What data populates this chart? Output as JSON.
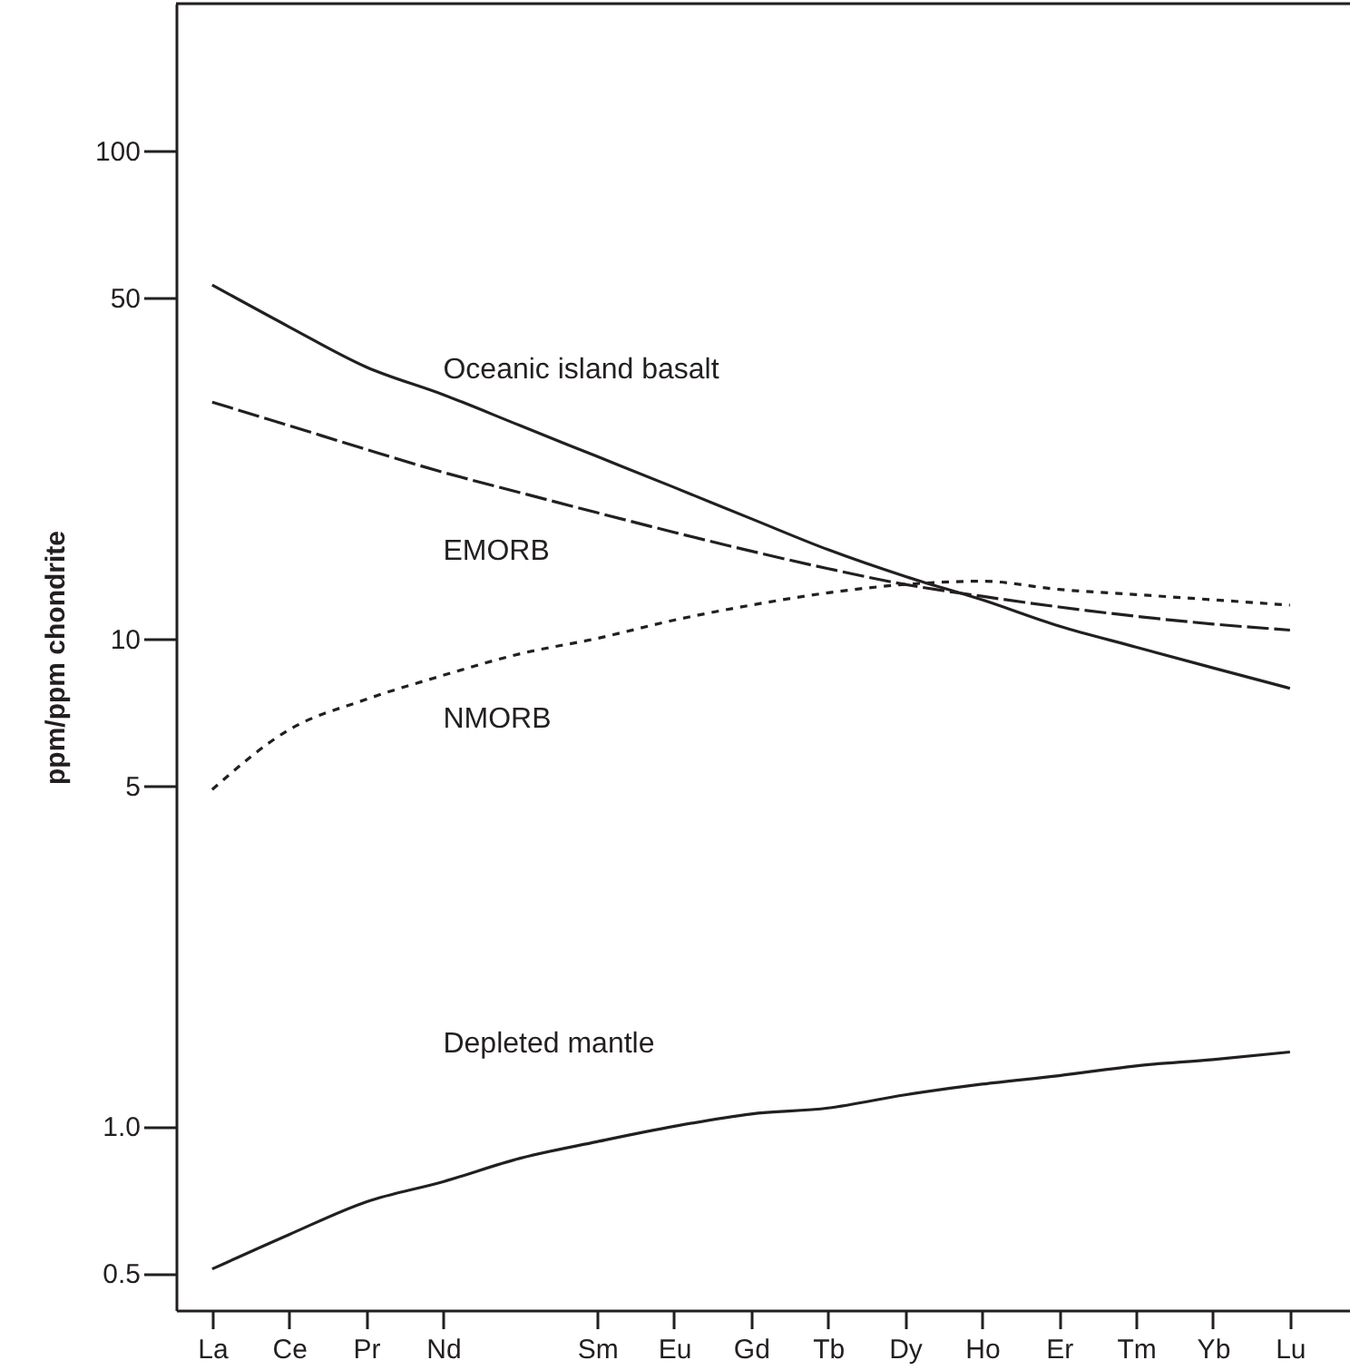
{
  "chart_data": {
    "type": "line",
    "ylabel": "ppm/ppm chondrite",
    "log": true,
    "categories": [
      "La",
      "Ce",
      "Pr",
      "Nd",
      null,
      "Sm",
      "Eu",
      "Gd",
      "Tb",
      "Dy",
      "Ho",
      "Er",
      "Tm",
      "Yb",
      "Lu"
    ],
    "ylim": [
      0.42,
      200
    ],
    "yticks": [
      {
        "value": 0.5,
        "label": "0.5"
      },
      {
        "value": 1,
        "label": "1.0"
      },
      5,
      10,
      50,
      100
    ],
    "grid": false,
    "marker": "none",
    "series": [
      {
        "name": "Oceanic island basalt",
        "color": "#231f20",
        "line_style": "solid",
        "values": [
          53,
          43.5,
          36,
          31.6,
          27.3,
          23.6,
          20.4,
          17.6,
          15.2,
          13.4,
          12,
          10.6,
          9.6,
          8.7,
          7.9
        ]
      },
      {
        "name": "EMORB",
        "color": "#231f20",
        "line_style": "dashed",
        "values": [
          30.5,
          27.3,
          24.4,
          21.9,
          19.9,
          18.1,
          16.5,
          15.1,
          13.9,
          12.9,
          12.2,
          11.6,
          11.1,
          10.7,
          10.4
        ]
      },
      {
        "name": "NMORB",
        "color": "#231f20",
        "line_style": "dotted",
        "values": [
          4.9,
          6.5,
          7.5,
          8.4,
          9.3,
          10,
          10.9,
          11.7,
          12.4,
          12.9,
          13.1,
          12.6,
          12.3,
          12,
          11.7
        ]
      },
      {
        "name": "Depleted mantle",
        "color": "#231f20",
        "line_style": "solid",
        "values": [
          0.51,
          0.6,
          0.7,
          0.77,
          0.86,
          0.93,
          1.0,
          1.06,
          1.09,
          1.16,
          1.22,
          1.27,
          1.33,
          1.37,
          1.42
        ]
      }
    ]
  }
}
